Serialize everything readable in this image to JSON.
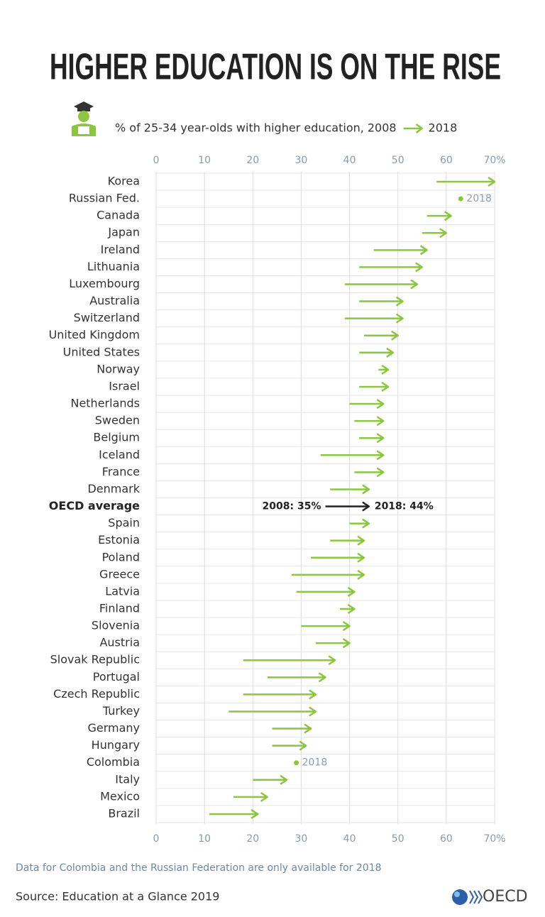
{
  "chart_data": {
    "type": "arrow",
    "title": "HIGHER EDUCATION IS ON THE RISE",
    "subtitle": "% of 25-34 year-olds with higher education,",
    "categories": [
      "Korea",
      "Russian Fed.",
      "Canada",
      "Japan",
      "Ireland",
      "Lithuania",
      "Luxembourg",
      "Australia",
      "Switzerland",
      "United Kingdom",
      "United States",
      "Norway",
      "Israel",
      "Netherlands",
      "Sweden",
      "Belgium",
      "Iceland",
      "France",
      "Denmark",
      "OECD average",
      "Spain",
      "Estonia",
      "Poland",
      "Greece",
      "Latvia",
      "Finland",
      "Slovenia",
      "Austria",
      "Slovak Republic",
      "Portugal",
      "Czech Republic",
      "Turkey",
      "Germany",
      "Hungary",
      "Colombia",
      "Italy",
      "Mexico",
      "Brazil"
    ],
    "series": [
      {
        "name": "2008",
        "color": "#8cc63f",
        "values": [
          58,
          null,
          56,
          55,
          45,
          42,
          39,
          42,
          39,
          43,
          42,
          46,
          42,
          40,
          41,
          42,
          34,
          41,
          36,
          35,
          40,
          36,
          32,
          28,
          29,
          38,
          30,
          33,
          18,
          23,
          18,
          15,
          24,
          24,
          null,
          20,
          16,
          11
        ],
        "value_labels": [
          null,
          null,
          null,
          null,
          null,
          null,
          null,
          null,
          null,
          null,
          null,
          null,
          null,
          null,
          null,
          null,
          null,
          null,
          null,
          "2008: 35%",
          null,
          null,
          null,
          null,
          null,
          null,
          null,
          null,
          null,
          null,
          null,
          null,
          null,
          null,
          null,
          null,
          null,
          null
        ]
      },
      {
        "name": "2018",
        "color": "#8cc63f",
        "values": [
          70,
          63,
          61,
          60,
          56,
          55,
          54,
          51,
          51,
          50,
          49,
          48,
          48,
          47,
          47,
          47,
          47,
          47,
          44,
          44,
          44,
          43,
          43,
          43,
          41,
          41,
          40,
          40,
          37,
          35,
          33,
          33,
          32,
          31,
          29,
          27,
          23,
          21
        ],
        "value_labels": [
          null,
          null,
          null,
          null,
          null,
          null,
          null,
          null,
          null,
          null,
          null,
          null,
          null,
          null,
          null,
          null,
          null,
          null,
          null,
          "2018: 44%",
          null,
          null,
          null,
          null,
          null,
          null,
          null,
          null,
          null,
          null,
          null,
          null,
          null,
          null,
          null,
          null,
          null,
          null
        ]
      }
    ],
    "xlim": [
      0,
      70
    ],
    "xticks": [
      0,
      10,
      20,
      30,
      40,
      50,
      60,
      {
        "value": 70,
        "label": "70%"
      }
    ],
    "grid": true,
    "highlight_color": "#222222",
    "footnote": "Data for Colombia and the Russian Federation are only available for 2018",
    "source": "Source: Education at a Glance 2019",
    "logo": "OECD"
  }
}
